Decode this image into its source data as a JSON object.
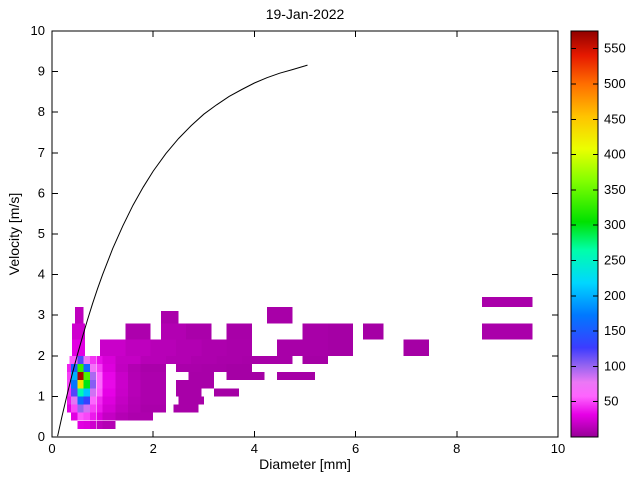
{
  "chart_data": {
    "type": "heatmap",
    "title": "19-Jan-2022",
    "xlabel": "Diameter [mm]",
    "ylabel": "Velocity [m/s]",
    "xlim": [
      0,
      10
    ],
    "ylim": [
      0,
      10
    ],
    "xticks": [
      0,
      2,
      4,
      6,
      8,
      10
    ],
    "yticks": [
      0,
      1,
      2,
      3,
      4,
      5,
      6,
      7,
      8,
      9,
      10
    ],
    "grid": false,
    "colorbar": {
      "position": "right",
      "min": 0,
      "max": 575,
      "ticks": [
        50,
        100,
        150,
        200,
        250,
        300,
        350,
        400,
        450,
        500,
        550
      ]
    },
    "colormap": [
      {
        "t": 0.0,
        "rgb": [
          150,
          0,
          150
        ]
      },
      {
        "t": 0.055,
        "rgb": [
          230,
          0,
          230
        ]
      },
      {
        "t": 0.1,
        "rgb": [
          255,
          100,
          255
        ]
      },
      {
        "t": 0.135,
        "rgb": [
          235,
          120,
          245
        ]
      },
      {
        "t": 0.175,
        "rgb": [
          150,
          100,
          240
        ]
      },
      {
        "t": 0.22,
        "rgb": [
          60,
          60,
          255
        ]
      },
      {
        "t": 0.3,
        "rgb": [
          0,
          120,
          255
        ]
      },
      {
        "t": 0.38,
        "rgb": [
          0,
          215,
          255
        ]
      },
      {
        "t": 0.46,
        "rgb": [
          0,
          255,
          170
        ]
      },
      {
        "t": 0.53,
        "rgb": [
          0,
          225,
          0
        ]
      },
      {
        "t": 0.63,
        "rgb": [
          130,
          255,
          0
        ]
      },
      {
        "t": 0.71,
        "rgb": [
          235,
          255,
          0
        ]
      },
      {
        "t": 0.79,
        "rgb": [
          255,
          195,
          0
        ]
      },
      {
        "t": 0.87,
        "rgb": [
          255,
          110,
          0
        ]
      },
      {
        "t": 0.94,
        "rgb": [
          230,
          25,
          0
        ]
      },
      {
        "t": 1.0,
        "rgb": [
          145,
          0,
          0
        ]
      }
    ],
    "cells_format": [
      "d_min_mm",
      "d_max_mm",
      "v_min_ms",
      "v_max_ms",
      "count"
    ],
    "cells": [
      [
        0.5,
        0.625,
        0.2,
        0.4,
        30
      ],
      [
        0.625,
        0.75,
        0.2,
        0.4,
        28
      ],
      [
        0.75,
        0.875,
        0.2,
        0.4,
        22
      ],
      [
        0.875,
        1.0,
        0.2,
        0.4,
        16
      ],
      [
        1.0,
        1.25,
        0.2,
        0.4,
        12
      ],
      [
        0.375,
        0.5,
        0.4,
        0.6,
        30
      ],
      [
        0.5,
        0.625,
        0.4,
        0.6,
        55
      ],
      [
        0.625,
        0.75,
        0.4,
        0.6,
        50
      ],
      [
        0.75,
        0.875,
        0.4,
        0.6,
        38
      ],
      [
        0.875,
        1.0,
        0.4,
        0.6,
        28
      ],
      [
        1.0,
        1.25,
        0.4,
        0.6,
        18
      ],
      [
        1.25,
        1.5,
        0.4,
        0.6,
        12
      ],
      [
        1.5,
        2.0,
        0.4,
        0.6,
        9
      ],
      [
        0.3,
        0.375,
        0.6,
        0.8,
        30
      ],
      [
        0.375,
        0.5,
        0.6,
        0.8,
        50
      ],
      [
        0.5,
        0.625,
        0.6,
        0.8,
        100
      ],
      [
        0.625,
        0.75,
        0.6,
        0.8,
        85
      ],
      [
        0.75,
        0.875,
        0.6,
        0.8,
        48
      ],
      [
        0.875,
        1.0,
        0.6,
        0.8,
        38
      ],
      [
        1.0,
        1.25,
        0.6,
        0.8,
        24
      ],
      [
        1.25,
        1.5,
        0.6,
        0.8,
        16
      ],
      [
        1.5,
        1.75,
        0.6,
        0.8,
        11
      ],
      [
        1.75,
        2.25,
        0.6,
        0.8,
        8
      ],
      [
        2.4,
        2.9,
        0.6,
        0.8,
        7
      ],
      [
        0.3,
        0.375,
        0.8,
        1.0,
        38
      ],
      [
        0.375,
        0.5,
        0.8,
        1.0,
        80
      ],
      [
        0.5,
        0.625,
        0.8,
        1.0,
        165
      ],
      [
        0.625,
        0.75,
        0.8,
        1.0,
        130
      ],
      [
        0.75,
        0.875,
        0.8,
        1.0,
        60
      ],
      [
        0.875,
        1.0,
        0.8,
        1.0,
        42
      ],
      [
        1.0,
        1.25,
        0.8,
        1.0,
        28
      ],
      [
        1.25,
        1.5,
        0.8,
        1.0,
        18
      ],
      [
        1.5,
        1.75,
        0.8,
        1.0,
        12
      ],
      [
        1.75,
        2.25,
        0.8,
        1.0,
        9
      ],
      [
        2.5,
        3.0,
        0.8,
        1.0,
        7
      ],
      [
        0.3,
        0.375,
        1.0,
        1.2,
        45
      ],
      [
        0.375,
        0.5,
        1.0,
        1.2,
        120
      ],
      [
        0.5,
        0.625,
        1.0,
        1.2,
        260
      ],
      [
        0.625,
        0.75,
        1.0,
        1.2,
        210
      ],
      [
        0.75,
        0.875,
        1.0,
        1.2,
        85
      ],
      [
        0.875,
        1.0,
        1.0,
        1.2,
        55
      ],
      [
        1.0,
        1.25,
        1.0,
        1.2,
        32
      ],
      [
        1.25,
        1.5,
        1.0,
        1.2,
        20
      ],
      [
        1.5,
        1.75,
        1.0,
        1.2,
        13
      ],
      [
        1.75,
        2.25,
        1.0,
        1.2,
        9
      ],
      [
        2.45,
        2.95,
        1.0,
        1.2,
        7
      ],
      [
        3.2,
        3.7,
        1.0,
        1.2,
        6
      ],
      [
        0.3,
        0.375,
        1.2,
        1.4,
        50
      ],
      [
        0.375,
        0.5,
        1.2,
        1.4,
        170
      ],
      [
        0.5,
        0.625,
        1.2,
        1.4,
        430
      ],
      [
        0.625,
        0.75,
        1.2,
        1.4,
        300
      ],
      [
        0.75,
        0.875,
        1.2,
        1.4,
        105
      ],
      [
        0.875,
        1.0,
        1.2,
        1.4,
        60
      ],
      [
        1.0,
        1.25,
        1.2,
        1.4,
        34
      ],
      [
        1.25,
        1.5,
        1.2,
        1.4,
        21
      ],
      [
        1.5,
        1.75,
        1.2,
        1.4,
        13
      ],
      [
        1.75,
        2.25,
        1.2,
        1.4,
        9
      ],
      [
        2.45,
        3.2,
        1.2,
        1.4,
        7
      ],
      [
        0.3,
        0.375,
        1.4,
        1.6,
        48
      ],
      [
        0.375,
        0.5,
        1.4,
        1.6,
        200
      ],
      [
        0.5,
        0.625,
        1.4,
        1.6,
        565
      ],
      [
        0.625,
        0.75,
        1.4,
        1.6,
        340
      ],
      [
        0.75,
        0.875,
        1.4,
        1.6,
        95
      ],
      [
        0.875,
        1.0,
        1.4,
        1.6,
        58
      ],
      [
        1.0,
        1.25,
        1.4,
        1.6,
        33
      ],
      [
        1.25,
        1.5,
        1.4,
        1.6,
        20
      ],
      [
        1.5,
        1.75,
        1.4,
        1.6,
        12
      ],
      [
        1.75,
        2.25,
        1.4,
        1.6,
        9
      ],
      [
        2.7,
        3.2,
        1.4,
        1.6,
        7
      ],
      [
        3.45,
        4.2,
        1.4,
        1.6,
        6
      ],
      [
        4.45,
        5.2,
        1.4,
        1.6,
        6
      ],
      [
        0.3,
        0.375,
        1.6,
        1.8,
        40
      ],
      [
        0.375,
        0.5,
        1.6,
        1.8,
        150
      ],
      [
        0.5,
        0.625,
        1.6,
        1.8,
        330
      ],
      [
        0.625,
        0.75,
        1.6,
        1.8,
        160
      ],
      [
        0.75,
        0.875,
        1.6,
        1.8,
        70
      ],
      [
        0.875,
        1.0,
        1.6,
        1.8,
        48
      ],
      [
        1.0,
        1.25,
        1.6,
        1.8,
        28
      ],
      [
        1.25,
        1.5,
        1.6,
        1.8,
        17
      ],
      [
        1.5,
        1.75,
        1.6,
        1.8,
        11
      ],
      [
        1.75,
        2.25,
        1.6,
        1.8,
        8
      ],
      [
        2.45,
        2.95,
        1.6,
        1.8,
        8
      ],
      [
        2.95,
        3.45,
        1.6,
        1.8,
        7
      ],
      [
        3.45,
        3.95,
        1.6,
        1.8,
        6
      ],
      [
        0.35,
        0.5,
        1.8,
        2.0,
        55
      ],
      [
        0.5,
        0.625,
        1.8,
        2.0,
        120
      ],
      [
        0.625,
        0.75,
        1.8,
        2.0,
        75
      ],
      [
        0.75,
        0.875,
        1.8,
        2.0,
        45
      ],
      [
        0.875,
        1.0,
        1.8,
        2.0,
        35
      ],
      [
        1.0,
        1.25,
        1.8,
        2.0,
        26
      ],
      [
        1.25,
        1.75,
        1.8,
        2.0,
        18
      ],
      [
        1.75,
        2.25,
        1.8,
        2.0,
        13
      ],
      [
        2.25,
        2.75,
        1.8,
        2.0,
        11
      ],
      [
        2.75,
        3.25,
        1.8,
        2.0,
        9
      ],
      [
        3.25,
        3.75,
        1.8,
        2.0,
        8
      ],
      [
        3.75,
        4.25,
        1.8,
        2.0,
        7
      ],
      [
        4.25,
        4.75,
        1.8,
        2.0,
        7
      ],
      [
        4.95,
        5.45,
        1.8,
        2.0,
        6
      ],
      [
        0.4,
        0.65,
        2.0,
        2.4,
        30
      ],
      [
        0.95,
        1.45,
        2.0,
        2.4,
        20
      ],
      [
        1.45,
        1.95,
        2.0,
        2.4,
        16
      ],
      [
        1.95,
        2.45,
        2.0,
        2.4,
        13
      ],
      [
        2.45,
        2.95,
        2.0,
        2.4,
        11
      ],
      [
        2.95,
        3.45,
        2.0,
        2.4,
        9
      ],
      [
        3.45,
        3.95,
        2.0,
        2.4,
        8
      ],
      [
        4.45,
        4.95,
        2.0,
        2.4,
        7
      ],
      [
        4.95,
        5.45,
        2.0,
        2.4,
        7
      ],
      [
        5.45,
        5.95,
        2.0,
        2.4,
        6
      ],
      [
        6.95,
        7.45,
        2.0,
        2.4,
        6
      ],
      [
        0.4,
        0.65,
        2.4,
        2.8,
        22
      ],
      [
        1.45,
        1.95,
        2.4,
        2.8,
        9
      ],
      [
        2.15,
        2.65,
        2.4,
        2.8,
        11
      ],
      [
        2.65,
        3.15,
        2.4,
        2.8,
        8
      ],
      [
        3.45,
        3.95,
        2.4,
        2.8,
        7
      ],
      [
        4.95,
        5.45,
        2.4,
        2.8,
        7
      ],
      [
        5.45,
        5.95,
        2.4,
        2.8,
        6
      ],
      [
        6.15,
        6.55,
        2.4,
        2.8,
        6
      ],
      [
        8.5,
        9.5,
        2.4,
        2.8,
        8
      ],
      [
        0.45,
        0.62,
        2.8,
        3.2,
        16
      ],
      [
        2.15,
        2.5,
        2.8,
        3.1,
        8
      ],
      [
        4.25,
        4.75,
        2.8,
        3.2,
        7
      ],
      [
        8.5,
        9.5,
        3.2,
        3.45,
        8
      ]
    ],
    "curve": {
      "type": "line",
      "color": "#000000",
      "points": [
        [
          0.11,
          0.02
        ],
        [
          0.2,
          0.52
        ],
        [
          0.3,
          1.05
        ],
        [
          0.4,
          1.55
        ],
        [
          0.5,
          2.02
        ],
        [
          0.6,
          2.46
        ],
        [
          0.7,
          2.88
        ],
        [
          0.8,
          3.28
        ],
        [
          0.9,
          3.65
        ],
        [
          1.0,
          4.0
        ],
        [
          1.2,
          4.64
        ],
        [
          1.4,
          5.2
        ],
        [
          1.6,
          5.71
        ],
        [
          1.8,
          6.15
        ],
        [
          2.0,
          6.55
        ],
        [
          2.25,
          6.98
        ],
        [
          2.5,
          7.35
        ],
        [
          2.75,
          7.67
        ],
        [
          3.0,
          7.95
        ],
        [
          3.25,
          8.18
        ],
        [
          3.5,
          8.39
        ],
        [
          3.75,
          8.56
        ],
        [
          4.0,
          8.72
        ],
        [
          4.25,
          8.85
        ],
        [
          4.5,
          8.96
        ],
        [
          4.75,
          9.05
        ],
        [
          5.0,
          9.14
        ],
        [
          5.05,
          9.16
        ]
      ]
    }
  }
}
